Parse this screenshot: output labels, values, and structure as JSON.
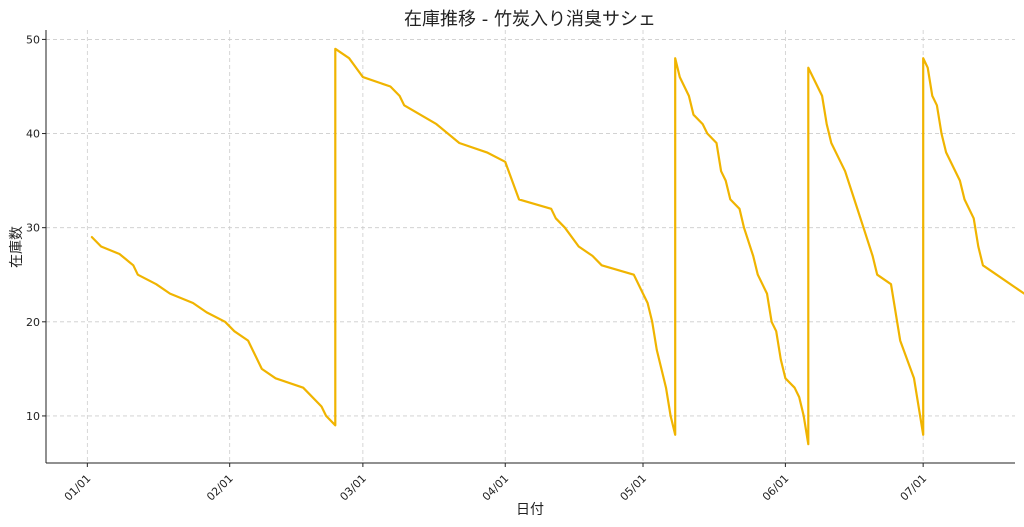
{
  "chart_data": {
    "type": "line",
    "title": "在庫推移 - 竹炭入り消臭サシェ",
    "xlabel": "日付",
    "ylabel": "在庫数",
    "grid": true,
    "year": 2024,
    "xlim": [
      "2023-12-23",
      "2024-07-21"
    ],
    "ylim": [
      5,
      51
    ],
    "x_ticks": [
      "01/01",
      "02/01",
      "03/01",
      "04/01",
      "05/01",
      "06/01",
      "07/01"
    ],
    "x_tick_dates": [
      "2024-01-01",
      "2024-02-01",
      "2024-03-01",
      "2024-04-01",
      "2024-05-01",
      "2024-06-01",
      "2024-07-01"
    ],
    "y_ticks": [
      10,
      20,
      30,
      40,
      50
    ],
    "color": "#f0b400",
    "series": [
      {
        "name": "",
        "points": [
          [
            "2024-01-02",
            29
          ],
          [
            "2024-01-04",
            28
          ],
          [
            "2024-01-08",
            27.2
          ],
          [
            "2024-01-11",
            26
          ],
          [
            "2024-01-12",
            25
          ],
          [
            "2024-01-16",
            24
          ],
          [
            "2024-01-19",
            23
          ],
          [
            "2024-01-24",
            22
          ],
          [
            "2024-01-27",
            21
          ],
          [
            "2024-01-31",
            20
          ],
          [
            "2024-02-02",
            19
          ],
          [
            "2024-02-05",
            18
          ],
          [
            "2024-02-08",
            15
          ],
          [
            "2024-02-11",
            14
          ],
          [
            "2024-02-17",
            13
          ],
          [
            "2024-02-21",
            11
          ],
          [
            "2024-02-22",
            10
          ],
          [
            "2024-02-24",
            9
          ],
          [
            "2024-02-24",
            49
          ],
          [
            "2024-02-27",
            48
          ],
          [
            "2024-03-01",
            46
          ],
          [
            "2024-03-07",
            45
          ],
          [
            "2024-03-09",
            44
          ],
          [
            "2024-03-10",
            43
          ],
          [
            "2024-03-17",
            41
          ],
          [
            "2024-03-22",
            39
          ],
          [
            "2024-03-28",
            38
          ],
          [
            "2024-04-01",
            37
          ],
          [
            "2024-04-04",
            33
          ],
          [
            "2024-04-11",
            32
          ],
          [
            "2024-04-12",
            31
          ],
          [
            "2024-04-14",
            30
          ],
          [
            "2024-04-17",
            28
          ],
          [
            "2024-04-20",
            27
          ],
          [
            "2024-04-22",
            26
          ],
          [
            "2024-04-29",
            25
          ],
          [
            "2024-05-01",
            23
          ],
          [
            "2024-05-02",
            22
          ],
          [
            "2024-05-03",
            20
          ],
          [
            "2024-05-04",
            17
          ],
          [
            "2024-05-06",
            13
          ],
          [
            "2024-05-07",
            10
          ],
          [
            "2024-05-08",
            8
          ],
          [
            "2024-05-08",
            48
          ],
          [
            "2024-05-09",
            46
          ],
          [
            "2024-05-11",
            44
          ],
          [
            "2024-05-12",
            42
          ],
          [
            "2024-05-14",
            41
          ],
          [
            "2024-05-15",
            40
          ],
          [
            "2024-05-17",
            39
          ],
          [
            "2024-05-18",
            36
          ],
          [
            "2024-05-19",
            35
          ],
          [
            "2024-05-20",
            33
          ],
          [
            "2024-05-22",
            32
          ],
          [
            "2024-05-23",
            30
          ],
          [
            "2024-05-25",
            27
          ],
          [
            "2024-05-26",
            25
          ],
          [
            "2024-05-28",
            23
          ],
          [
            "2024-05-29",
            20
          ],
          [
            "2024-05-30",
            19
          ],
          [
            "2024-05-31",
            16
          ],
          [
            "2024-06-01",
            14
          ],
          [
            "2024-06-03",
            13
          ],
          [
            "2024-06-04",
            12
          ],
          [
            "2024-06-05",
            10
          ],
          [
            "2024-06-06",
            7
          ],
          [
            "2024-06-06",
            47
          ],
          [
            "2024-06-07",
            46
          ],
          [
            "2024-06-09",
            44
          ],
          [
            "2024-06-10",
            41
          ],
          [
            "2024-06-11",
            39
          ],
          [
            "2024-06-13",
            37
          ],
          [
            "2024-06-14",
            36
          ],
          [
            "2024-06-16",
            33
          ],
          [
            "2024-06-18",
            30
          ],
          [
            "2024-06-20",
            27
          ],
          [
            "2024-06-21",
            25
          ],
          [
            "2024-06-24",
            24
          ],
          [
            "2024-06-26",
            18
          ],
          [
            "2024-06-29",
            14
          ],
          [
            "2024-07-01",
            8
          ],
          [
            "2024-07-01",
            48
          ],
          [
            "2024-07-02",
            47
          ],
          [
            "2024-07-03",
            44
          ],
          [
            "2024-07-04",
            43
          ],
          [
            "2024-07-05",
            40
          ],
          [
            "2024-07-06",
            38
          ],
          [
            "2024-07-09",
            35
          ],
          [
            "2024-07-10",
            33
          ],
          [
            "2024-07-12",
            31
          ],
          [
            "2024-07-13",
            28
          ],
          [
            "2024-07-14",
            26
          ],
          [
            "2024-07-17",
            25
          ],
          [
            "2024-07-23",
            23
          ]
        ]
      }
    ]
  }
}
